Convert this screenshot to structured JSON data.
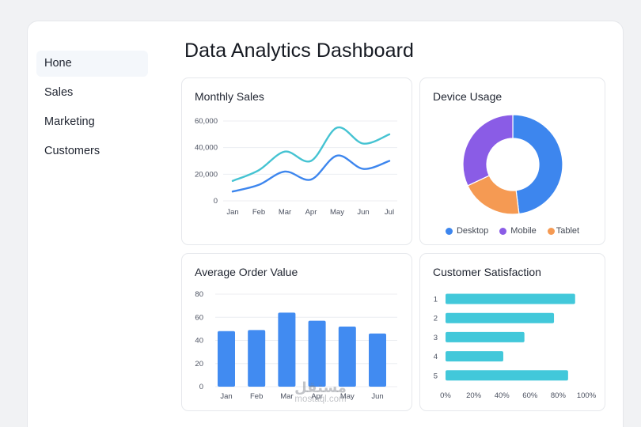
{
  "sidebar": {
    "items": [
      {
        "label": "Hone",
        "active": true
      },
      {
        "label": "Sales",
        "active": false
      },
      {
        "label": "Marketing",
        "active": false
      },
      {
        "label": "Customers",
        "active": false
      }
    ]
  },
  "header": {
    "title": "Data Analytics Dashboard"
  },
  "colors": {
    "blue": "#3d86ee",
    "teal": "#45c3d2",
    "purple": "#8a5ce6",
    "orange": "#f59a53",
    "bar_blue": "#418bf1",
    "hbar_teal": "#42c8da"
  },
  "cards": {
    "monthly_sales": {
      "title": "Monthly Sales"
    },
    "device_usage": {
      "title": "Device Usage"
    },
    "avg_order": {
      "title": "Average Order Value"
    },
    "satisfaction": {
      "title": "Customer Satisfaction"
    }
  },
  "chart_data": [
    {
      "type": "line",
      "title": "Monthly Sales",
      "categories": [
        "Jan",
        "Feb",
        "Mar",
        "Apr",
        "May",
        "Jun",
        "Jul"
      ],
      "yticks": [
        "0",
        "20,000",
        "40,000",
        "60,000"
      ],
      "ylim": [
        0,
        60000
      ],
      "grid": true,
      "series": [
        {
          "values": [
            15000,
            23000,
            37000,
            30000,
            55000,
            43000,
            50000
          ],
          "color": "#45c3d2"
        },
        {
          "values": [
            7000,
            12000,
            22000,
            16000,
            34000,
            24000,
            30000
          ],
          "color": "#3d86ee"
        }
      ]
    },
    {
      "type": "pie",
      "title": "Device Usage",
      "donut": true,
      "legend": "bottom",
      "slices": [
        {
          "name": "Desktop",
          "value": 48,
          "color": "#3d86ee"
        },
        {
          "name": "Tablet",
          "value": 20,
          "color": "#f59a53"
        },
        {
          "name": "Mobile",
          "value": 32,
          "color": "#8a5ce6"
        }
      ],
      "legend_items": [
        {
          "name": "Desktop",
          "color": "#3d86ee"
        },
        {
          "name": "Mobile",
          "color": "#8a5ce6"
        },
        {
          "name": "Tablet",
          "color": "#f59a53"
        }
      ]
    },
    {
      "type": "bar",
      "title": "Average Order Value",
      "categories": [
        "Jan",
        "Feb",
        "Mar",
        "Apr",
        "May",
        "Jun"
      ],
      "values": [
        48,
        49,
        64,
        57,
        52,
        46
      ],
      "yticks": [
        "0",
        "20",
        "40",
        "60",
        "80"
      ],
      "ylim": [
        0,
        80
      ],
      "grid": true,
      "color": "#418bf1"
    },
    {
      "type": "bar",
      "orientation": "horizontal",
      "title": "Customer Satisfaction",
      "categories": [
        "1",
        "2",
        "3",
        "4",
        "5"
      ],
      "values": [
        92,
        77,
        56,
        41,
        87
      ],
      "xticks": [
        "0%",
        "20%",
        "40%",
        "60%",
        "80%",
        "100%"
      ],
      "xlim": [
        0,
        100
      ],
      "color": "#42c8da"
    }
  ],
  "watermark": {
    "logo": "مستقل",
    "text": "mostaql.com"
  }
}
